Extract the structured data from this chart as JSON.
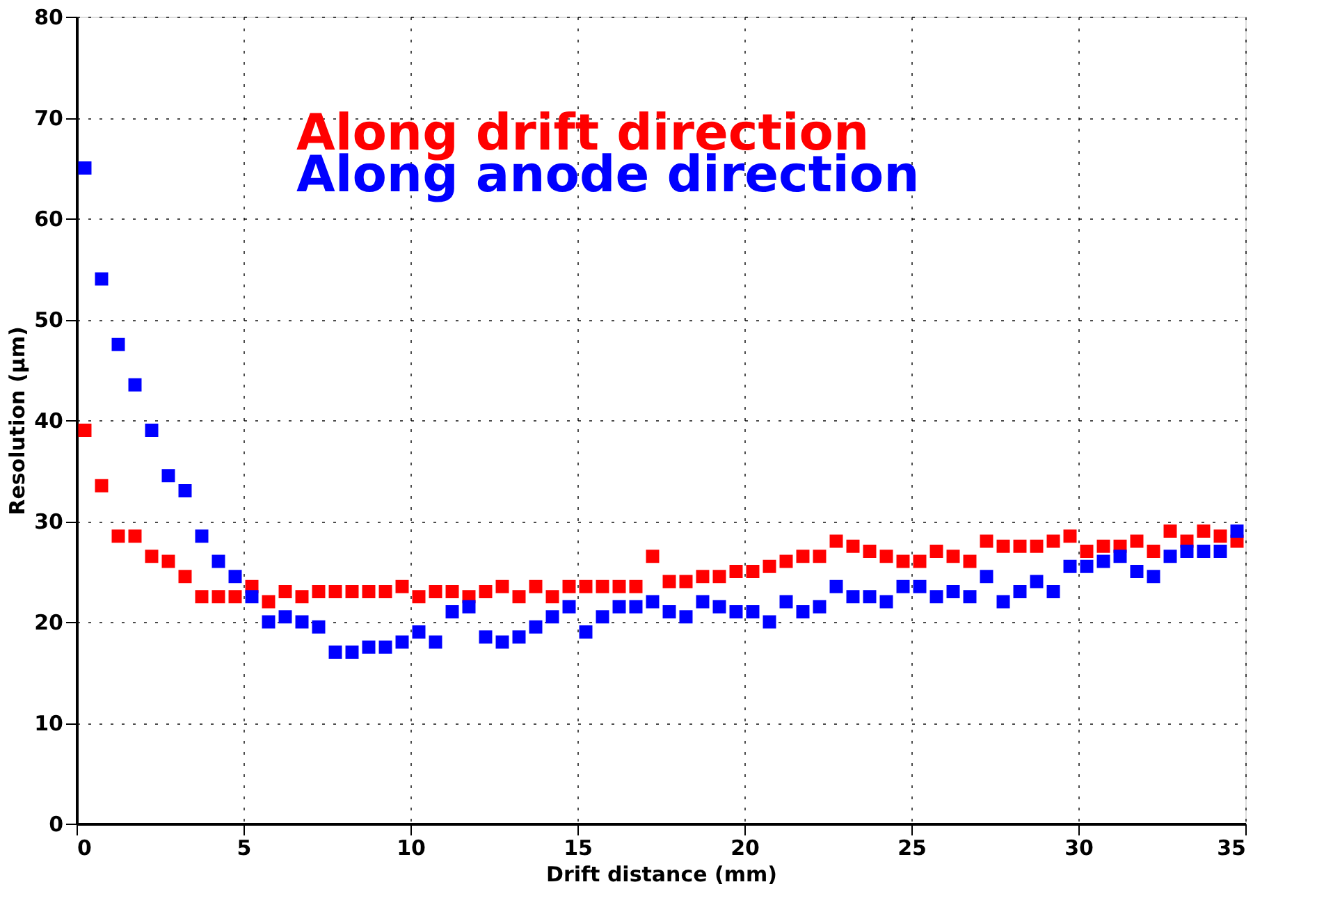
{
  "chart_data": {
    "type": "scatter",
    "xlabel": "Drift distance (mm)",
    "ylabel": "Resolution (μm)",
    "marker": "square",
    "grid": true,
    "legend": "top",
    "xlim": [
      0,
      35
    ],
    "xticks": [
      0,
      5,
      10,
      15,
      20,
      25,
      30,
      35
    ],
    "ylim": [
      0,
      80
    ],
    "yticks": [
      0,
      10,
      20,
      30,
      40,
      50,
      60,
      70,
      80
    ],
    "x": [
      0.25,
      0.75,
      1.25,
      1.75,
      2.25,
      2.75,
      3.25,
      3.75,
      4.25,
      4.75,
      5.25,
      5.75,
      6.25,
      6.75,
      7.25,
      7.75,
      8.25,
      8.75,
      9.25,
      9.75,
      10.25,
      10.75,
      11.25,
      11.75,
      12.25,
      12.75,
      13.25,
      13.75,
      14.25,
      14.75,
      15.25,
      15.75,
      16.25,
      16.75,
      17.25,
      17.75,
      18.25,
      18.75,
      19.25,
      19.75,
      20.25,
      20.75,
      21.25,
      21.75,
      22.25,
      22.75,
      23.25,
      23.75,
      24.25,
      24.75,
      25.25,
      25.75,
      26.25,
      26.75,
      27.25,
      27.75,
      28.25,
      28.75,
      29.25,
      29.75,
      30.25,
      30.75,
      31.25,
      31.75,
      32.25,
      32.75,
      33.25,
      33.75,
      34.25,
      34.75
    ],
    "series": [
      {
        "name": "Along drift direction",
        "color": "#ff0000",
        "values": [
          39,
          33.5,
          28.5,
          28.5,
          26.5,
          26,
          24.5,
          22.5,
          22.5,
          22.5,
          23.5,
          22,
          23,
          22.5,
          23,
          23,
          23,
          23,
          23,
          23.5,
          22.5,
          23,
          23,
          22.5,
          23,
          23.5,
          22.5,
          23.5,
          22.5,
          23.5,
          23.5,
          23.5,
          23.5,
          23.5,
          26.5,
          24,
          24,
          24.5,
          24.5,
          25,
          25,
          25.5,
          26,
          26.5,
          26.5,
          28,
          27.5,
          27,
          26.5,
          26,
          26,
          27,
          26.5,
          26,
          28,
          27.5,
          27.5,
          27.5,
          28,
          28.5,
          27,
          27.5,
          27.5,
          28,
          27,
          29,
          28,
          29,
          28.5,
          28
        ]
      },
      {
        "name": "Along anode direction",
        "color": "#0000ff",
        "values": [
          65,
          54,
          47.5,
          43.5,
          39,
          34.5,
          33,
          28.5,
          26,
          24.5,
          22.5,
          20,
          20.5,
          20,
          19.5,
          17,
          17,
          17.5,
          17.5,
          18,
          19,
          18,
          21,
          21.5,
          18.5,
          18,
          18.5,
          19.5,
          20.5,
          21.5,
          19,
          20.5,
          21.5,
          21.5,
          22,
          21,
          20.5,
          22,
          21.5,
          21,
          21,
          20,
          22,
          21,
          21.5,
          23.5,
          22.5,
          22.5,
          22,
          23.5,
          23.5,
          22.5,
          23,
          22.5,
          24.5,
          22,
          23,
          24,
          23,
          25.5,
          25.5,
          26,
          26.5,
          25,
          24.5,
          26.5,
          27,
          27,
          27,
          29
        ]
      }
    ]
  }
}
